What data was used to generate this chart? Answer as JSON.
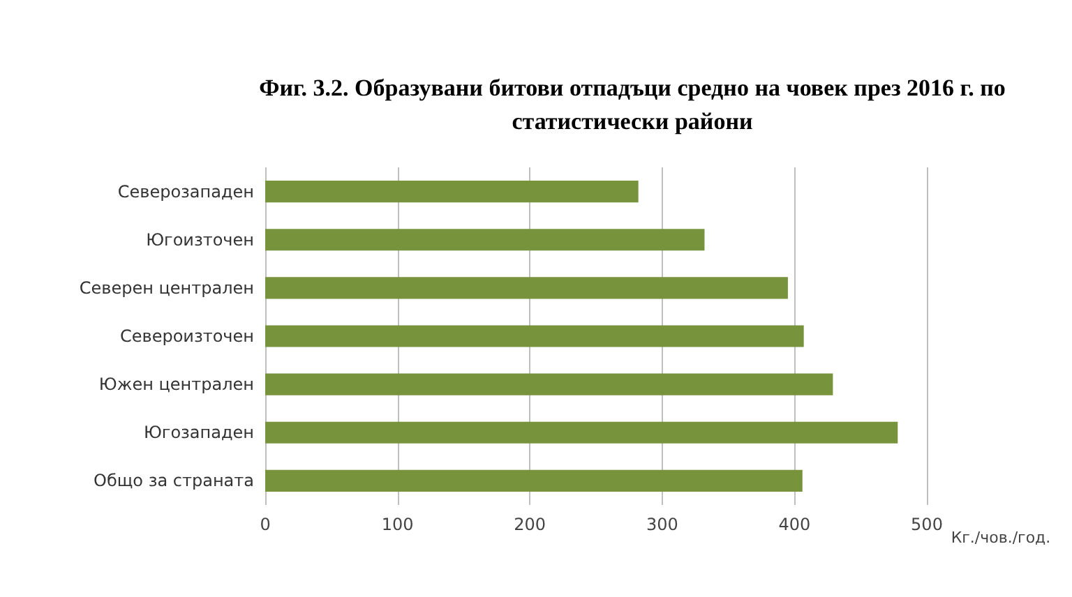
{
  "chart_data": {
    "type": "bar",
    "orientation": "horizontal",
    "title": "Фиг. 3.2. Образувани битови отпадъци средно на човек през 2016 г. по\nстатистически райони",
    "xlabel": "Кг./чов./год.",
    "categories": [
      "Северозападен",
      "Югоизточен",
      "Северен централен",
      "Североизточен",
      "Южен централен",
      "Югозападен",
      "Общо за страната"
    ],
    "values": [
      282,
      332,
      395,
      407,
      429,
      478,
      406
    ],
    "color": "#77933c",
    "xlim": [
      0,
      500
    ],
    "xticks": [
      0,
      100,
      200,
      300,
      400,
      500
    ],
    "grid": "x"
  }
}
